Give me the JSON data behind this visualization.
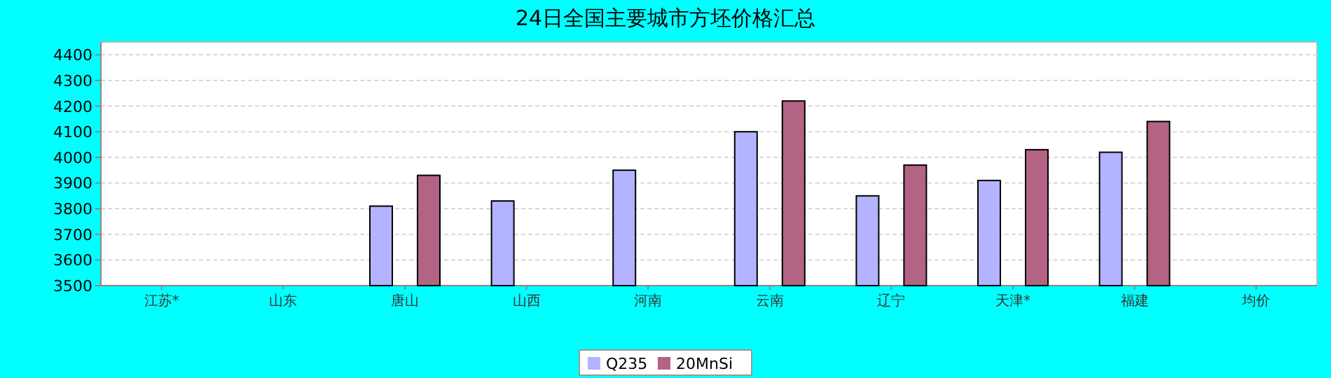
{
  "chart_data": {
    "type": "bar",
    "title": "24日全国主要城市方坯价格汇总",
    "categories": [
      "江苏*",
      "山东",
      "唐山",
      "山西",
      "河南",
      "云南",
      "辽宁",
      "天津*",
      "福建",
      "均价"
    ],
    "series": [
      {
        "name": "Q235",
        "color": "#b3b3ff",
        "values": [
          null,
          null,
          3810,
          3830,
          3950,
          4100,
          3850,
          3910,
          4020,
          null
        ]
      },
      {
        "name": "20MnSi",
        "color": "#b36384",
        "values": [
          null,
          null,
          3930,
          null,
          null,
          4220,
          3970,
          4030,
          4140,
          null
        ]
      }
    ],
    "ylim": [
      3500,
      4450
    ],
    "yticks": [
      3500,
      3600,
      3700,
      3800,
      3900,
      4000,
      4100,
      4200,
      4300,
      4400
    ],
    "grid": "y",
    "legend": "bottom"
  }
}
